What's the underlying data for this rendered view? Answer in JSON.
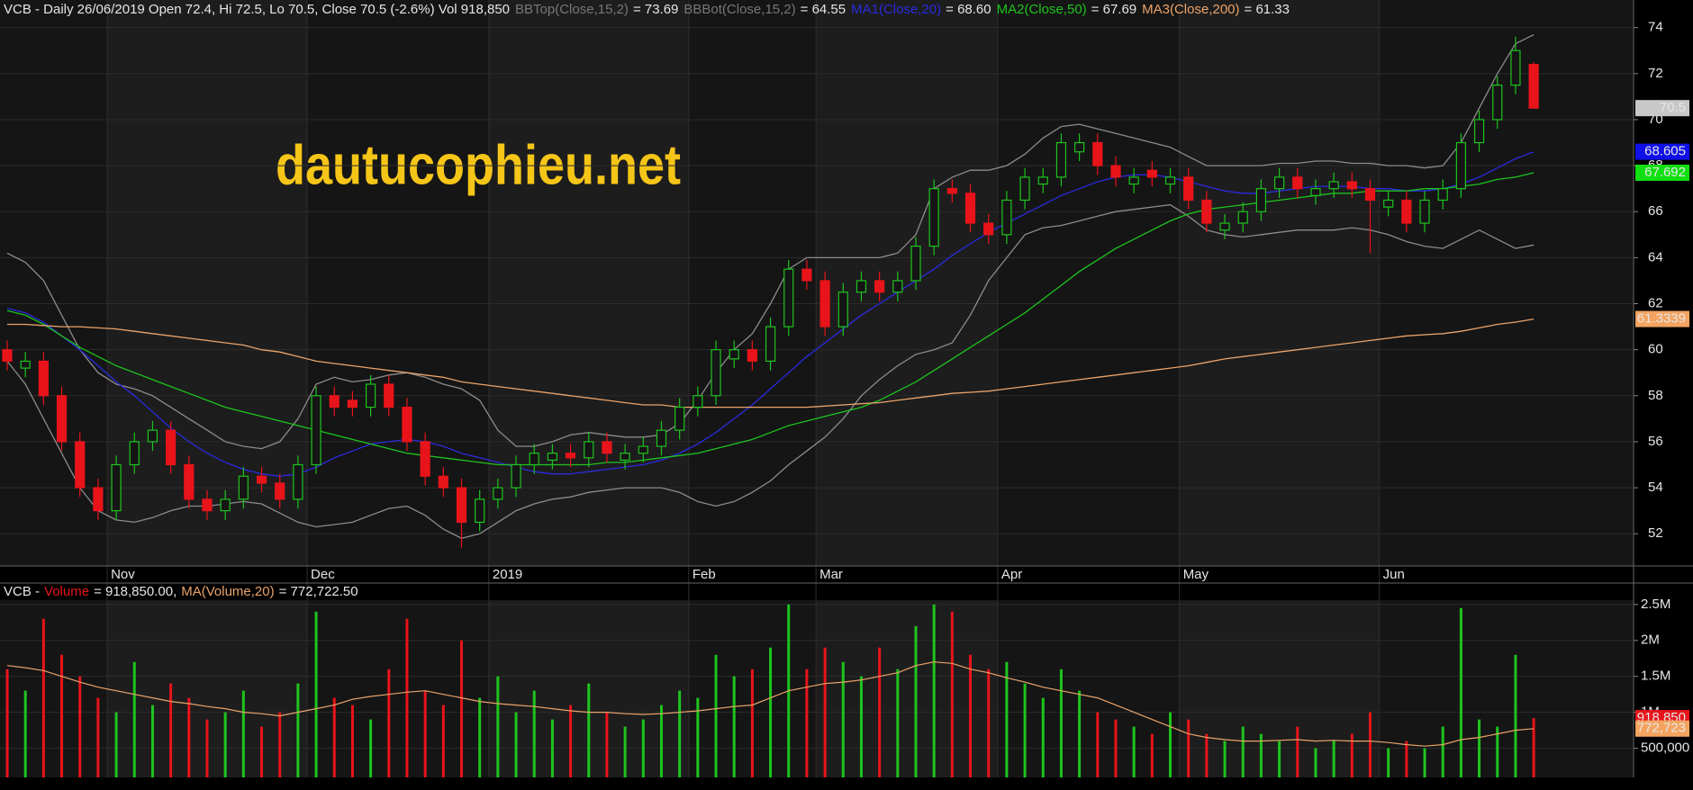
{
  "chart_data": [
    {
      "type": "candlestick",
      "title": "VCB - Daily 26/06/2019 Open 72.4, Hi 72.5, Lo 70.5, Close 70.5 (-2.6%) Vol 918,850",
      "watermark": "dautucophieu.net",
      "categories": [
        null,
        null,
        null,
        null,
        null,
        null,
        "Nov",
        null,
        null,
        null,
        null,
        null,
        null,
        null,
        null,
        null,
        null,
        "Dec",
        null,
        null,
        null,
        null,
        null,
        null,
        null,
        null,
        null,
        "2019",
        null,
        null,
        null,
        null,
        null,
        null,
        null,
        null,
        null,
        null,
        "Feb",
        null,
        null,
        null,
        null,
        null,
        null,
        "Mar",
        null,
        null,
        null,
        null,
        null,
        null,
        null,
        null,
        null,
        "Apr",
        null,
        null,
        null,
        null,
        null,
        null,
        null,
        null,
        null,
        "May",
        null,
        null,
        null,
        null,
        null,
        null,
        null,
        null,
        null,
        null,
        "Jun",
        null,
        null,
        null,
        null,
        null,
        null,
        null,
        null
      ],
      "open": [
        60,
        59.2,
        59.5,
        58,
        56,
        54,
        53,
        55,
        56,
        56.5,
        55,
        53.5,
        53,
        53.5,
        54.5,
        54.2,
        53.5,
        55,
        58,
        57.8,
        57.5,
        58.5,
        57.5,
        56,
        54.5,
        54,
        52.5,
        53.5,
        54,
        55,
        55.2,
        55.5,
        55.3,
        56,
        55.2,
        55.5,
        55.8,
        56.5,
        57.5,
        58,
        59.6,
        60,
        59.5,
        61,
        63.5,
        63,
        61,
        62.5,
        63,
        62.5,
        63,
        64.5,
        67,
        66.8,
        65.5,
        65,
        66.5,
        67.2,
        67.5,
        68.6,
        69,
        68,
        67.2,
        67.8,
        67.2,
        67.5,
        66.5,
        65.2,
        65.5,
        66,
        67,
        67.5,
        66.7,
        67,
        67.3,
        67,
        66.2,
        66.5,
        65.5,
        66.5,
        67,
        69,
        70,
        71.5,
        72.4
      ],
      "high": [
        60.4,
        59.9,
        59.9,
        58.4,
        56.4,
        54.4,
        55.4,
        56.4,
        56.9,
        56.9,
        55.4,
        53.9,
        53.9,
        54.9,
        54.9,
        54.6,
        55.4,
        58.4,
        58.4,
        58.2,
        58.9,
        58.9,
        57.9,
        56.4,
        54.9,
        54.4,
        53.9,
        54.4,
        55.4,
        55.9,
        55.9,
        55.9,
        56.4,
        56.4,
        55.9,
        56.2,
        56.9,
        57.9,
        58.4,
        60.4,
        60.4,
        60.4,
        61.4,
        63.9,
        63.9,
        63.4,
        62.9,
        63.4,
        63.4,
        63.4,
        64.9,
        67.4,
        67.4,
        67.2,
        65.9,
        66.9,
        67.9,
        67.9,
        69.4,
        69.4,
        69.4,
        68.4,
        67.9,
        68.2,
        67.9,
        67.9,
        66.9,
        65.9,
        66.4,
        67.4,
        67.9,
        67.9,
        67.4,
        67.7,
        67.7,
        67.4,
        66.9,
        66.9,
        66.9,
        67.4,
        69.4,
        70.4,
        71.9,
        73.6,
        72.5
      ],
      "low": [
        59.1,
        58.8,
        57.6,
        55.6,
        53.6,
        52.6,
        52.6,
        54.6,
        55.6,
        54.6,
        53.1,
        52.6,
        52.6,
        53.1,
        53.8,
        53.1,
        53.1,
        54.6,
        57.1,
        57.1,
        57.1,
        57.1,
        55.6,
        54.1,
        53.6,
        51.4,
        52.1,
        53.1,
        53.6,
        54.6,
        54.8,
        54.9,
        54.9,
        55.1,
        54.8,
        55.1,
        55.4,
        56.1,
        57.1,
        57.6,
        59.2,
        59.1,
        59.1,
        60.6,
        62.6,
        60.6,
        60.6,
        62.1,
        62.1,
        62.1,
        62.6,
        64.1,
        66.4,
        65.1,
        64.6,
        64.6,
        66.1,
        66.8,
        67.1,
        68.2,
        67.6,
        67.1,
        66.8,
        67.1,
        66.8,
        66.1,
        65.1,
        64.8,
        65.1,
        65.6,
        66.6,
        66.6,
        66.3,
        66.6,
        66.6,
        64.2,
        65.8,
        65.1,
        65.1,
        66.1,
        66.6,
        68.6,
        69.6,
        71.1,
        70.5
      ],
      "close": [
        59.5,
        59.5,
        58,
        56,
        54,
        53,
        55,
        56,
        56.5,
        55,
        53.5,
        53,
        53.5,
        54.5,
        54.2,
        53.5,
        55,
        58,
        57.5,
        57.5,
        58.5,
        57.5,
        56,
        54.5,
        54,
        52.5,
        53.5,
        54,
        55,
        55.5,
        55.5,
        55.3,
        56,
        55.5,
        55.5,
        55.8,
        56.5,
        57.5,
        58,
        60,
        60,
        59.5,
        61,
        63.5,
        63,
        61,
        62.5,
        63,
        62.5,
        63,
        64.5,
        67,
        66.8,
        65.5,
        65,
        66.5,
        67.5,
        67.5,
        69,
        69,
        68,
        67.5,
        67.5,
        67.5,
        67.5,
        66.5,
        65.5,
        65.5,
        66,
        67,
        67.5,
        67,
        67,
        67.3,
        67,
        66.5,
        66.5,
        65.5,
        66.5,
        67,
        69,
        70,
        71.5,
        73,
        70.5
      ],
      "up_color": "#1ec41e",
      "down_color": "#e8141a",
      "overlays": [
        {
          "name": "BBTop(Close,15,2)",
          "value_label": "= 73.69",
          "color": "#8c8c8c",
          "values": [
            64.2,
            63.8,
            63,
            61.5,
            60,
            59,
            58.5,
            58.3,
            58,
            57.5,
            57,
            56.5,
            56,
            55.8,
            55.7,
            56,
            57,
            58.5,
            58.8,
            58.6,
            58.7,
            58.9,
            59,
            58.8,
            58.5,
            58.3,
            57.8,
            56.5,
            55.8,
            55.8,
            56,
            56.3,
            56.4,
            56.3,
            56.2,
            56.2,
            56.3,
            56.8,
            57.8,
            59,
            60,
            60.7,
            62,
            63.5,
            64,
            64,
            64,
            64,
            64,
            64.2,
            65,
            67,
            67.5,
            67.8,
            67.8,
            68,
            68.5,
            69.2,
            69.7,
            69.8,
            69.6,
            69.4,
            69.2,
            69,
            68.8,
            68.4,
            68,
            68,
            68,
            68,
            68.1,
            68.1,
            68.2,
            68.2,
            68.1,
            68.1,
            68,
            68,
            67.9,
            68,
            69,
            70.5,
            72,
            73.3,
            73.69
          ]
        },
        {
          "name": "BBBot(Close,15,2)",
          "value_label": "= 64.55",
          "color": "#8c8c8c",
          "values": [
            59.5,
            58.5,
            57,
            55.5,
            54,
            53,
            52.6,
            52.5,
            52.7,
            53,
            53.2,
            53.2,
            53.3,
            53.4,
            53.3,
            52.9,
            52.5,
            52.3,
            52.4,
            52.5,
            52.8,
            53.1,
            53.2,
            52.8,
            52.2,
            51.8,
            52,
            52.5,
            53,
            53.3,
            53.5,
            53.6,
            53.8,
            53.9,
            54,
            54,
            54,
            53.8,
            53.4,
            53.2,
            53.4,
            53.8,
            54.3,
            55,
            55.6,
            56.2,
            57,
            58,
            58.7,
            59.3,
            59.8,
            60,
            60.3,
            61.5,
            63,
            64,
            65,
            65.3,
            65.4,
            65.6,
            65.8,
            66,
            66.1,
            66.2,
            66.3,
            65.8,
            65.2,
            65,
            64.9,
            65,
            65.1,
            65.2,
            65.2,
            65.2,
            65.3,
            65.2,
            65,
            64.7,
            64.5,
            64.4,
            64.8,
            65.2,
            64.8,
            64.4,
            64.55
          ]
        },
        {
          "name": "MA1(Close,20)",
          "value_label": "= 68.60",
          "color": "#2a2ae0",
          "values": [
            61.8,
            61.6,
            61.2,
            60.6,
            60,
            59.3,
            58.6,
            58,
            57.3,
            56.6,
            56,
            55.5,
            55.1,
            54.8,
            54.6,
            54.5,
            54.6,
            54.9,
            55.3,
            55.6,
            55.9,
            56,
            56.1,
            56,
            55.8,
            55.5,
            55.3,
            55.1,
            54.9,
            54.7,
            54.6,
            54.6,
            54.7,
            54.8,
            54.9,
            55,
            55.2,
            55.5,
            55.9,
            56.4,
            57,
            57.6,
            58.3,
            59,
            59.7,
            60.3,
            60.9,
            61.5,
            62,
            62.5,
            63,
            63.5,
            64.1,
            64.6,
            65.1,
            65.5,
            65.9,
            66.3,
            66.7,
            67,
            67.3,
            67.5,
            67.6,
            67.6,
            67.5,
            67.3,
            67.1,
            66.9,
            66.8,
            66.8,
            66.9,
            67,
            67.1,
            67.1,
            67.1,
            67,
            67,
            66.9,
            66.9,
            67,
            67.2,
            67.5,
            67.9,
            68.3,
            68.6
          ]
        },
        {
          "name": "MA2(Close,50)",
          "value_label": "= 67.69",
          "color": "#1ec41e",
          "values": [
            61.7,
            61.5,
            61.1,
            60.6,
            60.1,
            59.7,
            59.3,
            59,
            58.7,
            58.4,
            58.1,
            57.8,
            57.5,
            57.3,
            57.1,
            56.9,
            56.7,
            56.5,
            56.3,
            56.1,
            55.9,
            55.7,
            55.5,
            55.4,
            55.3,
            55.2,
            55.1,
            55,
            55,
            55,
            55,
            55,
            55,
            55.1,
            55.1,
            55.2,
            55.3,
            55.4,
            55.5,
            55.7,
            55.9,
            56.1,
            56.4,
            56.7,
            56.9,
            57.1,
            57.3,
            57.5,
            57.8,
            58.2,
            58.6,
            59.1,
            59.6,
            60.1,
            60.6,
            61.1,
            61.6,
            62.2,
            62.8,
            63.4,
            63.9,
            64.4,
            64.8,
            65.2,
            65.6,
            65.9,
            66.1,
            66.2,
            66.3,
            66.4,
            66.5,
            66.6,
            66.7,
            66.8,
            66.8,
            66.9,
            66.9,
            66.9,
            67,
            67,
            67.1,
            67.2,
            67.4,
            67.5,
            67.69
          ]
        },
        {
          "name": "MA3(Close,200)",
          "value_label": "= 61.33",
          "color": "#eaa36a",
          "values": [
            61.1,
            61.1,
            61.05,
            61,
            61,
            60.95,
            60.9,
            60.8,
            60.7,
            60.6,
            60.5,
            60.4,
            60.3,
            60.2,
            60,
            59.9,
            59.7,
            59.5,
            59.4,
            59.3,
            59.2,
            59.1,
            59,
            58.9,
            58.8,
            58.6,
            58.5,
            58.4,
            58.3,
            58.2,
            58.1,
            58,
            57.9,
            57.8,
            57.7,
            57.6,
            57.6,
            57.5,
            57.5,
            57.5,
            57.5,
            57.5,
            57.5,
            57.5,
            57.5,
            57.55,
            57.6,
            57.65,
            57.7,
            57.8,
            57.9,
            58,
            58.1,
            58.15,
            58.2,
            58.3,
            58.4,
            58.5,
            58.6,
            58.7,
            58.8,
            58.9,
            59,
            59.1,
            59.2,
            59.3,
            59.45,
            59.6,
            59.7,
            59.8,
            59.9,
            60,
            60.1,
            60.2,
            60.3,
            60.4,
            60.5,
            60.6,
            60.65,
            60.7,
            60.8,
            60.95,
            61.1,
            61.2,
            61.33
          ]
        }
      ],
      "last_labels": [
        {
          "value": 70.5,
          "label": "70.5",
          "color": "#c8c8c8"
        },
        {
          "value": 68.605,
          "label": "68.605",
          "color": "#1010e8"
        },
        {
          "value": 67.692,
          "label": "67.692",
          "color": "#10e010"
        },
        {
          "value": 61.3339,
          "label": "61.3339",
          "color": "#f4a460"
        }
      ],
      "ylim": [
        50.6,
        75.2
      ],
      "yticks": [
        52,
        54,
        56,
        58,
        60,
        62,
        64,
        66,
        68,
        70,
        72,
        74
      ],
      "grid": true
    },
    {
      "type": "bar",
      "title": "VCB -",
      "series": [
        {
          "name": "Volume",
          "value_label": "= 918,850.00,",
          "color": "#e8141a",
          "values": [
            1600000,
            1300000,
            2300000,
            1800000,
            1500000,
            1200000,
            1000000,
            1700000,
            1100000,
            1400000,
            1200000,
            900000,
            1000000,
            1300000,
            800000,
            1000000,
            1400000,
            2400000,
            1200000,
            1100000,
            900000,
            1600000,
            2300000,
            1300000,
            1100000,
            2000000,
            1200000,
            1500000,
            1000000,
            1300000,
            900000,
            1100000,
            1400000,
            1000000,
            800000,
            900000,
            1100000,
            1300000,
            1200000,
            1800000,
            1500000,
            1600000,
            1900000,
            2500000,
            1600000,
            1900000,
            1700000,
            1500000,
            1900000,
            1600000,
            2200000,
            2500000,
            2400000,
            1800000,
            1600000,
            1700000,
            1400000,
            1200000,
            1600000,
            1300000,
            1000000,
            900000,
            800000,
            700000,
            1000000,
            900000,
            700000,
            600000,
            800000,
            700000,
            600000,
            800000,
            500000,
            600000,
            700000,
            1000000,
            500000,
            600000,
            500000,
            800000,
            2450000,
            900000,
            800000,
            1800000,
            918850
          ]
        },
        {
          "name": "MA(Volume,20)",
          "value_label": "= 772,722.50",
          "color": "#eaa36a",
          "type": "line",
          "values": [
            1650000,
            1620000,
            1580000,
            1500000,
            1420000,
            1350000,
            1300000,
            1250000,
            1200000,
            1150000,
            1120000,
            1080000,
            1050000,
            1000000,
            980000,
            950000,
            1000000,
            1050000,
            1100000,
            1180000,
            1220000,
            1250000,
            1280000,
            1300000,
            1250000,
            1200000,
            1150000,
            1120000,
            1100000,
            1080000,
            1050000,
            1020000,
            1000000,
            1000000,
            980000,
            970000,
            980000,
            1000000,
            1020000,
            1050000,
            1080000,
            1100000,
            1200000,
            1300000,
            1350000,
            1400000,
            1420000,
            1450000,
            1500000,
            1550000,
            1650000,
            1700000,
            1680000,
            1600000,
            1550000,
            1480000,
            1420000,
            1350000,
            1300000,
            1250000,
            1200000,
            1100000,
            1000000,
            900000,
            800000,
            700000,
            650000,
            620000,
            600000,
            600000,
            610000,
            620000,
            600000,
            610000,
            600000,
            600000,
            580000,
            550000,
            530000,
            550000,
            620000,
            650000,
            700000,
            750000,
            772722.5
          ]
        }
      ],
      "last_labels": [
        {
          "value": 918850,
          "label": "918,850",
          "color": "#e8141a"
        },
        {
          "value": 772723,
          "label": "772,723",
          "color": "#f4a460"
        }
      ],
      "ylim": [
        94000,
        2560000
      ],
      "yticks": [
        {
          "value": 500000,
          "label": "500,000"
        },
        {
          "value": 1000000,
          "label": "1M"
        },
        {
          "value": 1500000,
          "label": "1.5M"
        },
        {
          "value": 2000000,
          "label": "2M"
        },
        {
          "value": 2500000,
          "label": "2.5M"
        }
      ]
    }
  ]
}
